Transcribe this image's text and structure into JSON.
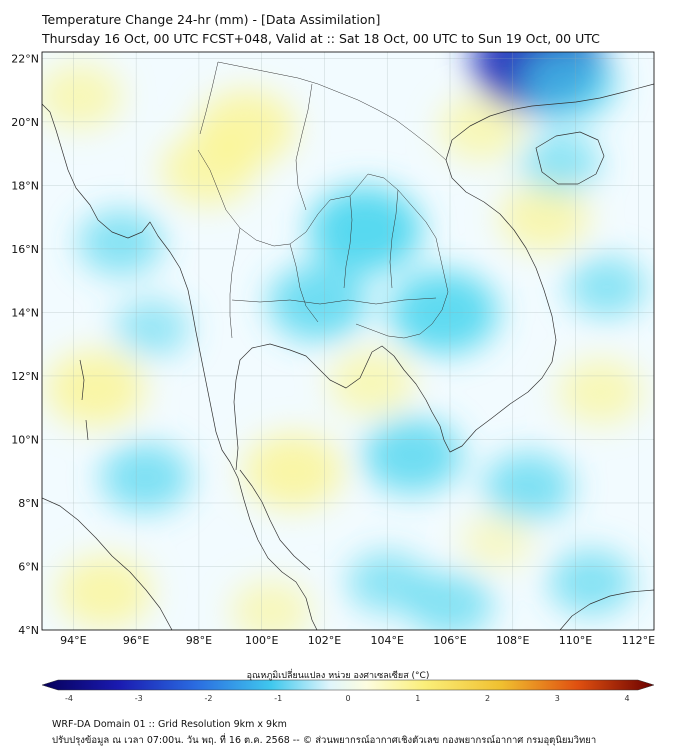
{
  "title_line1": "Temperature Change 24-hr (mm) - [Data Assimilation]",
  "title_line2": "Thursday 16 Oct, 00 UTC FCST+048, Valid at :: Sat 18 Oct, 00 UTC to Sun 19 Oct, 00 UTC",
  "lat_ticks": [
    "22°N",
    "20°N",
    "18°N",
    "16°N",
    "14°N",
    "12°N",
    "10°N",
    "8°N",
    "6°N",
    "4°N"
  ],
  "lon_ticks": [
    "94°E",
    "96°E",
    "98°E",
    "100°E",
    "102°E",
    "104°E",
    "106°E",
    "108°E",
    "110°E",
    "112°E"
  ],
  "colorbar": {
    "label": "อุณหภูมิเปลี่ยนแปลง หน่วย องศาเซลเซียส (°C)",
    "ticks": [
      "-4",
      "-3",
      "-2",
      "-1",
      "0",
      "1",
      "2",
      "3",
      "4"
    ]
  },
  "footer_line1": "WRF-DA Domain 01 :: Grid Resolution 9km x 9km",
  "footer_line2": "ปรับปรุงข้อมูล ณ เวลา 07:00น. วัน พฤ. ที่ 16 ต.ค. 2568 -- © ส่วนพยากรณ์อากาศเชิงตัวเลข กองพยากรณ์อากาศ กรมอุตุนิยมวิทยา",
  "chart_data": {
    "type": "heatmap",
    "title": "Temperature Change 24-hr (mm) - [Data Assimilation]",
    "xlim": [
      93,
      112.5
    ],
    "ylim": [
      4,
      22.2
    ],
    "value_range": [
      -4,
      4
    ],
    "colors": {
      "cold_extreme": "#2233bb",
      "cold": "#44d4ee",
      "neutral": "#f4fbff",
      "warm": "#fcf58a",
      "hot": "#cc2200"
    },
    "blobs": [
      {
        "lon": 99.5,
        "lat": 19.8,
        "value": 0.9
      },
      {
        "lon": 98.3,
        "lat": 18.5,
        "value": 0.8
      },
      {
        "lon": 94.2,
        "lat": 20.8,
        "value": 0.6
      },
      {
        "lon": 107.0,
        "lat": 19.8,
        "value": 0.6
      },
      {
        "lon": 109.0,
        "lat": 17.0,
        "value": 0.7
      },
      {
        "lon": 94.7,
        "lat": 11.6,
        "value": 0.9
      },
      {
        "lon": 95.0,
        "lat": 5.2,
        "value": 0.8
      },
      {
        "lon": 101.0,
        "lat": 9.0,
        "value": 0.9
      },
      {
        "lon": 103.5,
        "lat": 11.8,
        "value": 0.6
      },
      {
        "lon": 110.8,
        "lat": 11.5,
        "value": 0.6
      },
      {
        "lon": 100.3,
        "lat": 4.6,
        "value": 0.5
      },
      {
        "lon": 107.5,
        "lat": 6.8,
        "value": 0.3
      },
      {
        "lon": 103.3,
        "lat": 16.6,
        "value": -1.2
      },
      {
        "lon": 105.8,
        "lat": 14.0,
        "value": -1.1
      },
      {
        "lon": 101.8,
        "lat": 14.3,
        "value": -0.9
      },
      {
        "lon": 108.8,
        "lat": 21.9,
        "value": -1.6
      },
      {
        "lon": 109.8,
        "lat": 21.2,
        "value": -0.8
      },
      {
        "lon": 104.8,
        "lat": 9.5,
        "value": -0.9
      },
      {
        "lon": 96.3,
        "lat": 8.8,
        "value": -0.7
      },
      {
        "lon": 108.5,
        "lat": 8.5,
        "value": -0.7
      },
      {
        "lon": 110.5,
        "lat": 5.5,
        "value": -0.6
      },
      {
        "lon": 95.5,
        "lat": 16.2,
        "value": -0.6
      },
      {
        "lon": 111.0,
        "lat": 14.8,
        "value": -0.5
      },
      {
        "lon": 104.0,
        "lat": 5.5,
        "value": -0.5
      },
      {
        "lon": 106.0,
        "lat": 4.8,
        "value": -0.6
      },
      {
        "lon": 109.5,
        "lat": 18.7,
        "value": -0.5
      },
      {
        "lon": 96.5,
        "lat": 13.5,
        "value": -0.4
      }
    ]
  }
}
